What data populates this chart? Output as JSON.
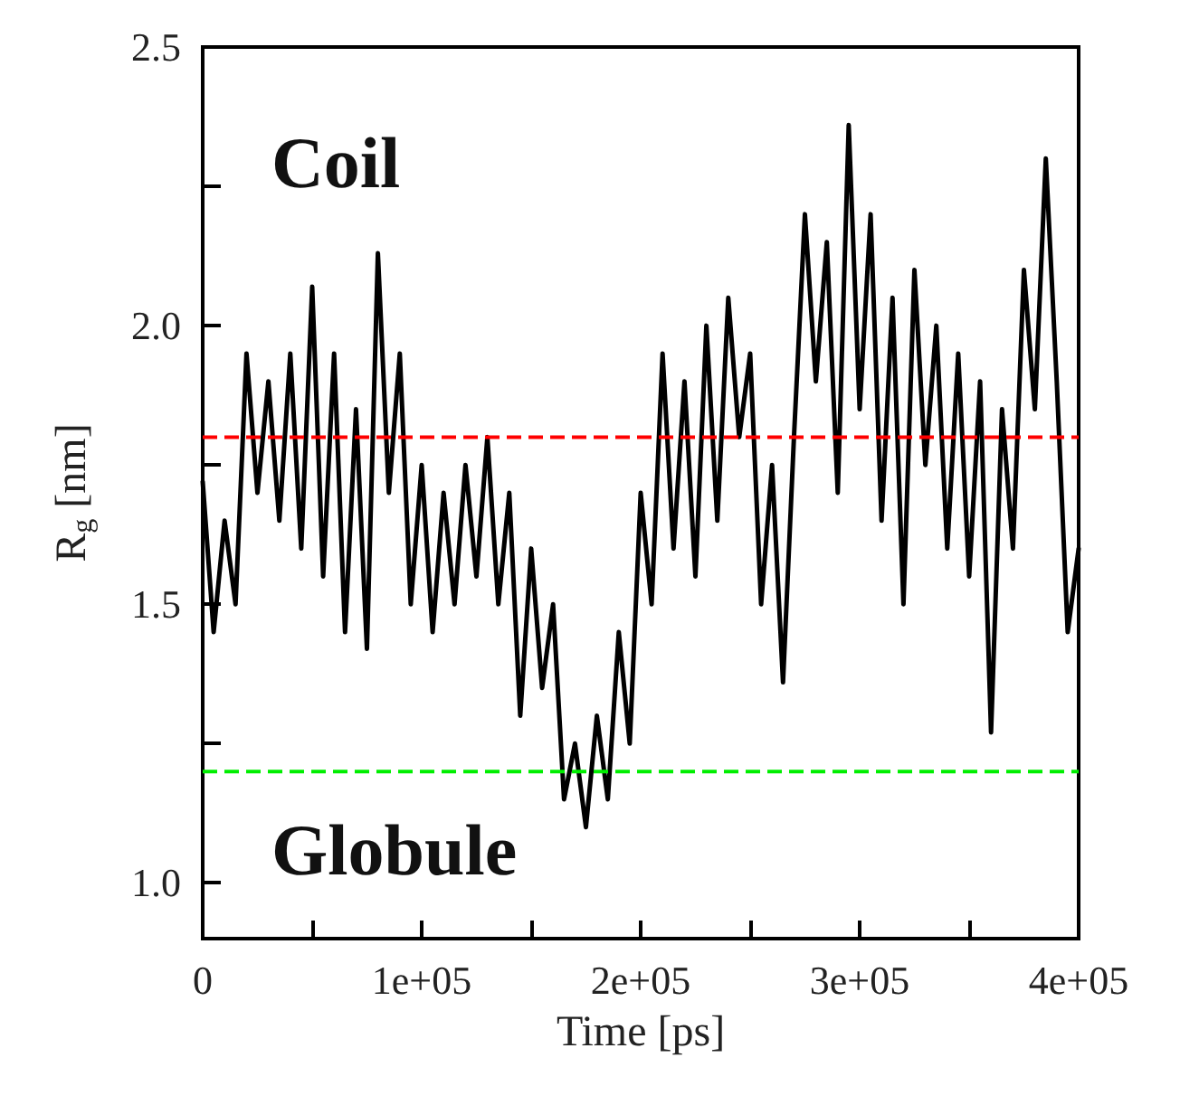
{
  "chart_data": {
    "type": "line",
    "xlabel": "Time [ps]",
    "ylabel": "R$_{g}$ [nm]",
    "x": [
      0,
      5000,
      10000,
      15000,
      20000,
      25000,
      30000,
      35000,
      40000,
      45000,
      50000,
      55000,
      60000,
      65000,
      70000,
      75000,
      80000,
      85000,
      90000,
      95000,
      100000,
      105000,
      110000,
      115000,
      120000,
      125000,
      130000,
      135000,
      140000,
      145000,
      150000,
      155000,
      160000,
      165000,
      170000,
      175000,
      180000,
      185000,
      190000,
      195000,
      200000,
      205000,
      210000,
      215000,
      220000,
      225000,
      230000,
      235000,
      240000,
      245000,
      250000,
      255000,
      260000,
      265000,
      270000,
      275000,
      280000,
      285000,
      290000,
      295000,
      300000,
      305000,
      310000,
      315000,
      320000,
      325000,
      330000,
      335000,
      340000,
      345000,
      350000,
      355000,
      360000,
      365000,
      370000,
      375000,
      380000,
      385000,
      390000,
      395000,
      400000
    ],
    "series": [
      {
        "color": "#000000",
        "values": [
          1.72,
          1.45,
          1.65,
          1.5,
          1.95,
          1.7,
          1.9,
          1.65,
          1.95,
          1.6,
          2.07,
          1.55,
          1.95,
          1.45,
          1.85,
          1.42,
          2.13,
          1.7,
          1.95,
          1.5,
          1.75,
          1.45,
          1.7,
          1.5,
          1.75,
          1.55,
          1.8,
          1.5,
          1.7,
          1.3,
          1.6,
          1.35,
          1.5,
          1.15,
          1.25,
          1.1,
          1.3,
          1.15,
          1.45,
          1.25,
          1.7,
          1.5,
          1.95,
          1.6,
          1.9,
          1.55,
          2.0,
          1.65,
          2.05,
          1.8,
          1.95,
          1.5,
          1.75,
          1.36,
          1.8,
          2.2,
          1.9,
          2.15,
          1.7,
          2.36,
          1.85,
          2.2,
          1.65,
          2.05,
          1.5,
          2.1,
          1.75,
          2.0,
          1.6,
          1.95,
          1.55,
          1.9,
          1.27,
          1.85,
          1.6,
          2.1,
          1.85,
          2.3,
          1.9,
          1.45,
          1.6
        ]
      }
    ],
    "xlim": [
      0,
      400000
    ],
    "xticks": [
      0,
      {
        "value": 50000,
        "label": null
      },
      {
        "value": 100000,
        "label": "1e+05"
      },
      {
        "value": 150000,
        "label": null
      },
      {
        "value": 200000,
        "label": "2e+05"
      },
      {
        "value": 250000,
        "label": null
      },
      {
        "value": 300000,
        "label": "3e+05"
      },
      {
        "value": 350000,
        "label": null
      },
      {
        "value": 400000,
        "label": "4e+05"
      }
    ],
    "ylim": [
      0.9,
      2.5
    ],
    "yticks": [
      {
        "value": 1,
        "label": "1.0"
      },
      {
        "value": 1.25,
        "label": null
      },
      {
        "value": 1.5,
        "label": "1.5"
      },
      {
        "value": 1.75,
        "label": null
      },
      {
        "value": 2,
        "label": "2.0"
      },
      {
        "value": 2.25,
        "label": null
      },
      {
        "value": 2.5,
        "label": "2.5"
      }
    ],
    "ref_lines": [
      {
        "axis": "y",
        "value": 1.8,
        "color": "#ff0000",
        "line_style": "dashed"
      },
      {
        "axis": "y",
        "value": 1.2,
        "color": "#00ee00",
        "line_style": "dashed"
      }
    ],
    "annotations": [
      "Coil",
      "Globule"
    ],
    "marker": "none",
    "line_style": "solid"
  }
}
